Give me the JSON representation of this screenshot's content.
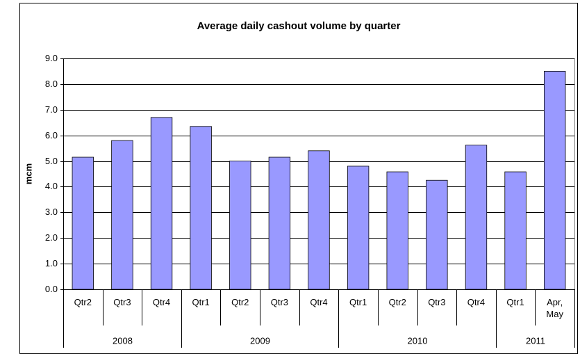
{
  "chart_data": {
    "type": "bar",
    "title": "Average daily cashout volume by quarter",
    "y_label": "mcm",
    "categories": [
      "Qtr2",
      "Qtr3",
      "Qtr4",
      "Qtr1",
      "Qtr2",
      "Qtr3",
      "Qtr4",
      "Qtr1",
      "Qtr2",
      "Qtr3",
      "Qtr4",
      "Qtr1",
      "Apr, May"
    ],
    "group_labels": [
      "2008",
      null,
      null,
      "2009",
      null,
      null,
      null,
      "2010",
      null,
      null,
      null,
      "2011",
      null
    ],
    "values": [
      5.15,
      5.8,
      6.7,
      6.35,
      5.0,
      5.15,
      5.4,
      4.8,
      4.58,
      4.25,
      5.62,
      4.58,
      8.5
    ],
    "color": "#9999ff",
    "ylim": [
      0,
      9
    ],
    "yticks": [
      {
        "value": 0,
        "label": "0.0"
      },
      {
        "value": 1,
        "label": "1.0"
      },
      {
        "value": 2,
        "label": "2.0"
      },
      {
        "value": 3,
        "label": "3.0"
      },
      {
        "value": 4,
        "label": "4.0"
      },
      {
        "value": 5,
        "label": "5.0"
      },
      {
        "value": 6,
        "label": "6.0"
      },
      {
        "value": 7,
        "label": "7.0"
      },
      {
        "value": 8,
        "label": "8.0"
      },
      {
        "value": 9,
        "label": "9.0"
      }
    ],
    "grid": true
  }
}
